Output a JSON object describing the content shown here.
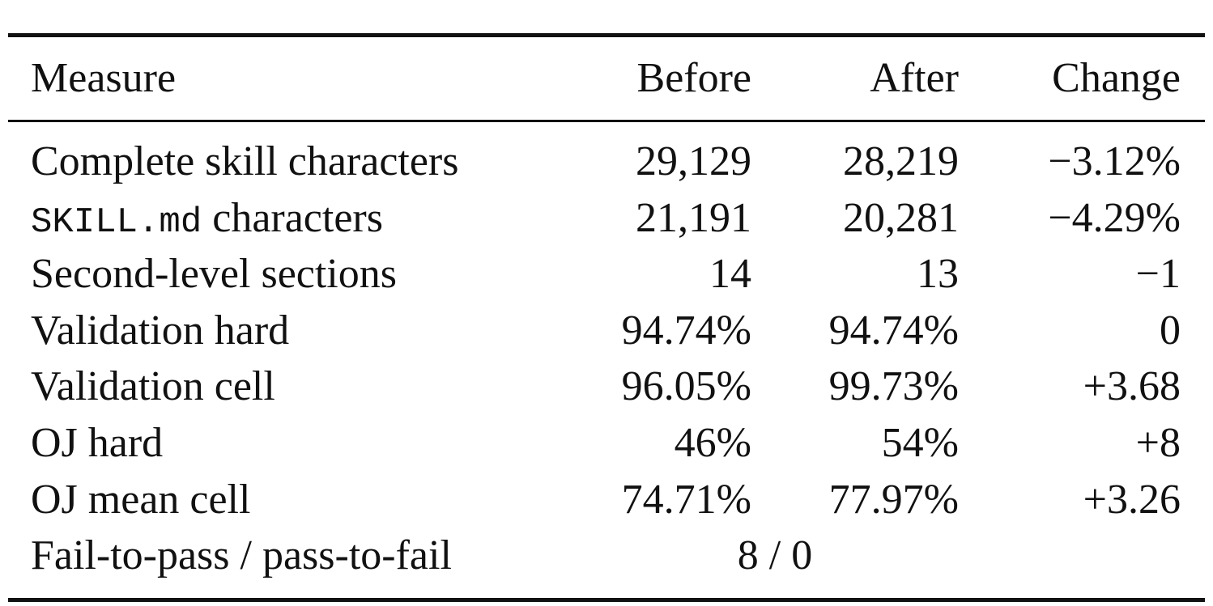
{
  "table": {
    "header": [
      "Measure",
      "Before",
      "After",
      "Change"
    ],
    "rows": [
      [
        {
          "text": "Complete skill characters"
        },
        "29,129",
        "28,219",
        "−3.12%"
      ],
      [
        {
          "code": "SKILL.md",
          "text": "characters"
        },
        "21,191",
        "20,281",
        "−4.29%"
      ],
      [
        {
          "text": "Second-level sections"
        },
        "14",
        "13",
        "−1"
      ],
      [
        {
          "text": "Validation hard"
        },
        "94.74%",
        "94.74%",
        "0"
      ],
      [
        {
          "text": "Validation cell"
        },
        "96.05%",
        "99.73%",
        "+3.68"
      ],
      [
        {
          "text": "OJ hard"
        },
        "46%",
        "54%",
        "+8"
      ],
      [
        {
          "text": "OJ mean cell"
        },
        "74.71%",
        "77.97%",
        "+3.26"
      ],
      [
        {
          "text": "Fail-to-pass / pass-to-fail"
        },
        "8 / 0"
      ]
    ]
  }
}
